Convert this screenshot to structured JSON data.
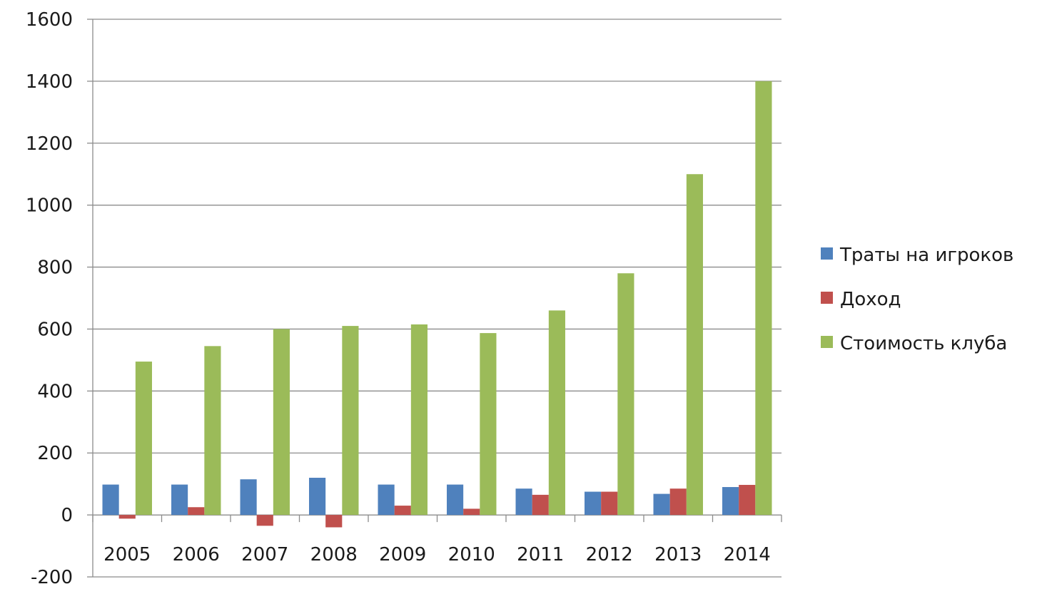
{
  "chart_data": {
    "type": "bar",
    "title": "",
    "xlabel": "",
    "ylabel": "",
    "categories": [
      "2005",
      "2006",
      "2007",
      "2008",
      "2009",
      "2010",
      "2011",
      "2012",
      "2013",
      "2014"
    ],
    "series": [
      {
        "name": "Траты на игроков",
        "color": "#4f81bd",
        "values": [
          98,
          98,
          115,
          120,
          98,
          98,
          85,
          75,
          68,
          90
        ]
      },
      {
        "name": "Доход",
        "color": "#c0504d",
        "values": [
          -12,
          25,
          -35,
          -40,
          30,
          20,
          65,
          75,
          85,
          97
        ]
      },
      {
        "name": "Стоимость клуба",
        "color": "#9bbb59",
        "values": [
          495,
          545,
          600,
          610,
          615,
          587,
          660,
          780,
          1100,
          1400
        ]
      }
    ],
    "ylim": [
      -200,
      1600
    ],
    "yticks": [
      "1600",
      "1400",
      "1200",
      "1000",
      "800",
      "600",
      "400",
      "200",
      "0",
      "-200"
    ],
    "grid": true,
    "legend_position": "right"
  }
}
